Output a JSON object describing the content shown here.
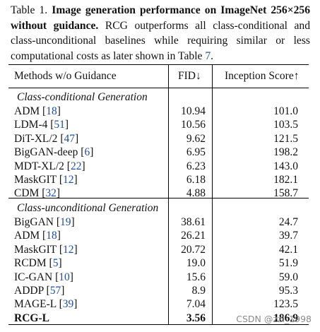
{
  "caption": {
    "label": "Table 1.",
    "title": "Image generation performance on ImageNet 256×256 without guidance.",
    "text_before_ref": "RCG outperforms all class-conditional and class-unconditional baselines while requiring similar or less computational costs as later shown in Table",
    "ref": "7",
    "text_after_ref": "."
  },
  "headers": {
    "method": "Methods w/o Guidance",
    "fid": "FID↓",
    "is": "Inception Score↑"
  },
  "sections": [
    {
      "title": "Class-conditional Generation",
      "rows": [
        {
          "name": "ADM",
          "cite": "18",
          "fid": "10.94",
          "is": "101.0"
        },
        {
          "name": "LDM-4",
          "cite": "51",
          "fid": "10.56",
          "is": "103.5"
        },
        {
          "name": "DiT-XL/2",
          "cite": "47",
          "fid": "9.62",
          "is": "121.5"
        },
        {
          "name": "BigGAN-deep",
          "cite": "6",
          "fid": "6.95",
          "is": "198.2"
        },
        {
          "name": "MDT-XL/2",
          "cite": "22",
          "fid": "6.23",
          "is": "143.0"
        },
        {
          "name": "MaskGIT",
          "cite": "12",
          "fid": "6.18",
          "is": "182.1"
        },
        {
          "name": "CDM",
          "cite": "32",
          "fid": "4.88",
          "is": "158.7"
        }
      ]
    },
    {
      "title": "Class-unconditional Generation",
      "rows": [
        {
          "name": "BigGAN",
          "cite": "19",
          "fid": "38.61",
          "is": "24.7"
        },
        {
          "name": "ADM",
          "cite": "18",
          "fid": "26.21",
          "is": "39.7"
        },
        {
          "name": "MaskGIT",
          "cite": "12",
          "fid": "20.72",
          "is": "42.1"
        },
        {
          "name": "RCDM",
          "cite": "5",
          "fid": "19.0",
          "is": "51.9"
        },
        {
          "name": "IC-GAN",
          "cite": "10",
          "fid": "15.6",
          "is": "59.0"
        },
        {
          "name": "ADDP",
          "cite": "57",
          "fid": "8.9",
          "is": "95.3"
        },
        {
          "name": "MAGE-L",
          "cite": "39",
          "fid": "7.04",
          "is": "123.5"
        },
        {
          "name": "RCG-L",
          "cite": "",
          "fid": "3.56",
          "is": "186.9"
        }
      ]
    }
  ],
  "watermark": "CSDN @zzl_1998"
}
